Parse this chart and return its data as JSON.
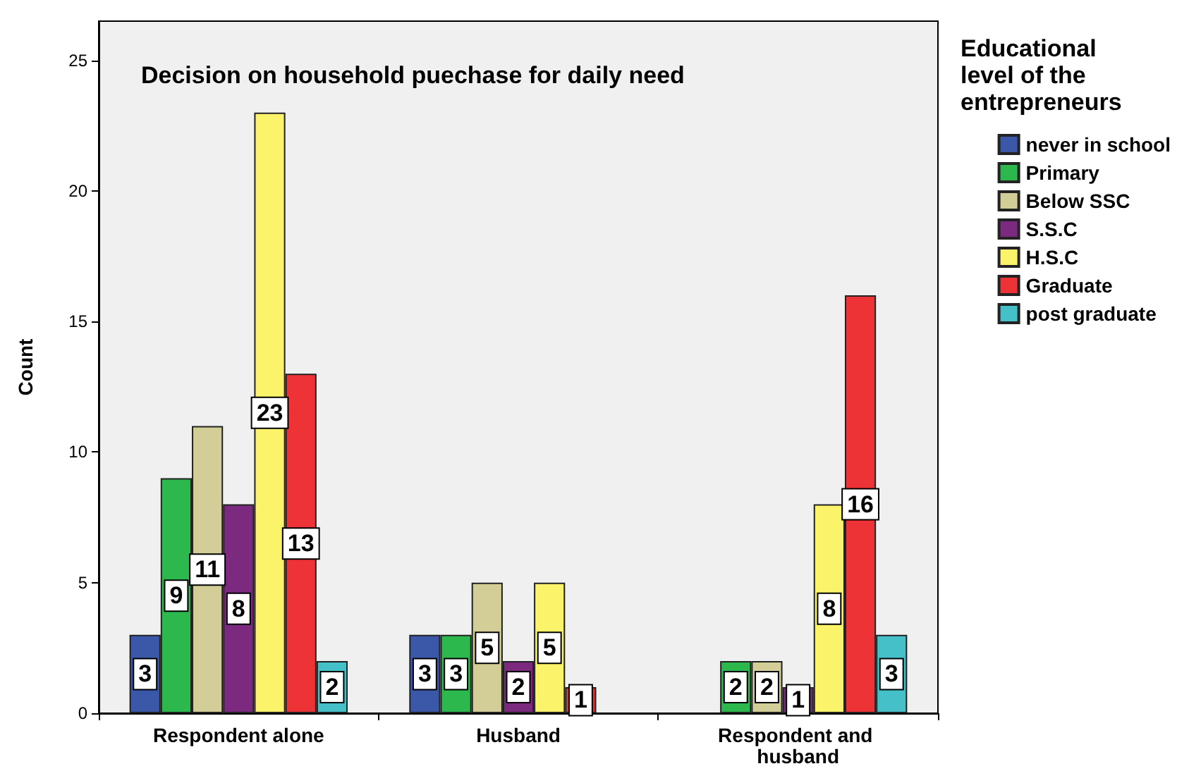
{
  "chart_data": {
    "type": "bar",
    "title": "Decision on household puechase for daily need",
    "ylabel": "Count",
    "legend_title": "Educational level of the entrepreneurs",
    "categories": [
      "Respondent alone",
      "Husband",
      "Respondent and husband"
    ],
    "series": [
      {
        "name": "never in school",
        "color": "#3a57a8",
        "values": [
          3,
          3,
          null
        ]
      },
      {
        "name": "Primary",
        "color": "#2db84d",
        "values": [
          9,
          3,
          2
        ]
      },
      {
        "name": "Below SSC",
        "color": "#d3ce97",
        "values": [
          11,
          5,
          2
        ]
      },
      {
        "name": "S.S.C",
        "color": "#7b2a80",
        "values": [
          8,
          2,
          1
        ]
      },
      {
        "name": "H.S.C",
        "color": "#fbf36a",
        "values": [
          23,
          5,
          8
        ]
      },
      {
        "name": "Graduate",
        "color": "#ee3336",
        "values": [
          13,
          1,
          16
        ]
      },
      {
        "name": "post graduate",
        "color": "#45c0c8",
        "values": [
          2,
          null,
          3
        ]
      }
    ],
    "ylim": [
      0,
      26.5
    ],
    "yticks": [
      0,
      5,
      10,
      15,
      20,
      25
    ],
    "grid": false,
    "legend": "right",
    "data_labels": true
  }
}
